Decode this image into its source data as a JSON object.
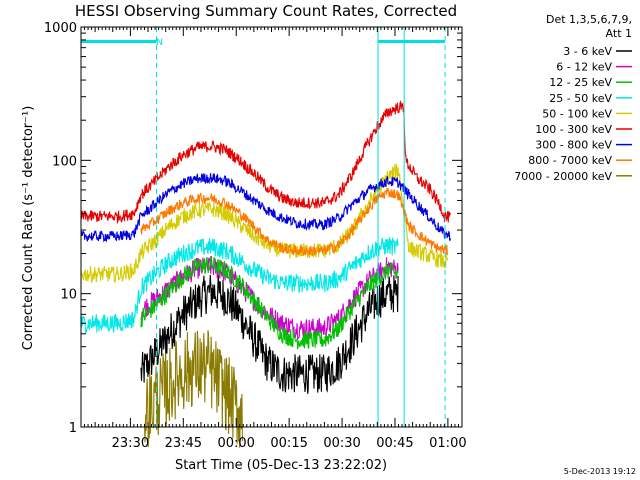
{
  "chart_data": {
    "type": "line",
    "title": "HESSI Observing Summary Count Rates, Corrected",
    "xlabel": "Start Time (05-Dec-13 23:22:02)",
    "ylabel": "Corrected Count Rate (s⁻¹ detector⁻¹)",
    "yscale": "log",
    "ylim": [
      1,
      1000
    ],
    "xlim_min": [
      -6,
      102
    ],
    "x_ticks": [
      {
        "min": 8,
        "label": "23:30"
      },
      {
        "min": 23,
        "label": "23:45"
      },
      {
        "min": 38,
        "label": "00:00"
      },
      {
        "min": 53,
        "label": "00:15"
      },
      {
        "min": 68,
        "label": "00:30"
      },
      {
        "min": 83,
        "label": "00:45"
      },
      {
        "min": 98,
        "label": "01:00"
      }
    ],
    "y_ticks": [
      {
        "v": 1,
        "label": "1"
      },
      {
        "v": 10,
        "label": "10"
      },
      {
        "v": 100,
        "label": "100"
      },
      {
        "v": 1000,
        "label": "1000"
      }
    ],
    "legend": {
      "header1": "Det 1,3,5,6,7,9,",
      "header2": "Att 1",
      "placement": "right"
    },
    "series": [
      {
        "name": "3 - 6 keV",
        "color": "#000000",
        "noise": 0.15,
        "points": [
          [
            11,
            2.5
          ],
          [
            15,
            3.5
          ],
          [
            19,
            5
          ],
          [
            23,
            7
          ],
          [
            27,
            9
          ],
          [
            31,
            10.5
          ],
          [
            35,
            9.5
          ],
          [
            39,
            7
          ],
          [
            43,
            4.5
          ],
          [
            47,
            3
          ],
          [
            51,
            2.5
          ],
          [
            55,
            2.5
          ],
          [
            59,
            2.5
          ],
          [
            63,
            2.5
          ],
          [
            67,
            3
          ],
          [
            71,
            4.5
          ],
          [
            75,
            7
          ],
          [
            78,
            9
          ],
          [
            81,
            10
          ],
          [
            84,
            10
          ]
        ]
      },
      {
        "name": "6 - 12 keV",
        "color": "#d000d0",
        "noise": 0.08,
        "points": [
          [
            11,
            7.5
          ],
          [
            15,
            9
          ],
          [
            19,
            11
          ],
          [
            23,
            13.5
          ],
          [
            27,
            15.5
          ],
          [
            31,
            16
          ],
          [
            35,
            14.5
          ],
          [
            39,
            11.5
          ],
          [
            43,
            9
          ],
          [
            47,
            7
          ],
          [
            51,
            6
          ],
          [
            55,
            5.5
          ],
          [
            59,
            5.5
          ],
          [
            63,
            5.5
          ],
          [
            67,
            6.5
          ],
          [
            71,
            9
          ],
          [
            75,
            12
          ],
          [
            78,
            14
          ],
          [
            81,
            16
          ],
          [
            84,
            15
          ]
        ]
      },
      {
        "name": "12 - 25 keV",
        "color": "#00c000",
        "noise": 0.07,
        "points": [
          [
            11,
            6.5
          ],
          [
            15,
            8
          ],
          [
            19,
            10.5
          ],
          [
            23,
            13.5
          ],
          [
            27,
            16
          ],
          [
            31,
            16.5
          ],
          [
            35,
            15
          ],
          [
            39,
            12
          ],
          [
            43,
            9
          ],
          [
            47,
            6.5
          ],
          [
            51,
            5
          ],
          [
            55,
            4.5
          ],
          [
            59,
            4.5
          ],
          [
            63,
            4.5
          ],
          [
            67,
            5.5
          ],
          [
            71,
            8
          ],
          [
            75,
            11
          ],
          [
            78,
            13
          ],
          [
            81,
            15
          ],
          [
            84,
            14
          ]
        ]
      },
      {
        "name": "25 - 50 keV",
        "color": "#00e8e8",
        "noise": 0.07,
        "points": [
          [
            -6,
            6
          ],
          [
            5,
            6
          ],
          [
            9,
            6.5
          ],
          [
            11,
            11
          ],
          [
            15,
            14
          ],
          [
            19,
            17.5
          ],
          [
            23,
            20
          ],
          [
            27,
            22
          ],
          [
            31,
            22.5
          ],
          [
            35,
            21
          ],
          [
            39,
            18
          ],
          [
            43,
            15
          ],
          [
            47,
            13
          ],
          [
            51,
            12
          ],
          [
            55,
            12
          ],
          [
            59,
            12
          ],
          [
            63,
            12
          ],
          [
            67,
            13
          ],
          [
            71,
            16
          ],
          [
            75,
            20
          ],
          [
            78,
            22
          ],
          [
            81,
            23
          ],
          [
            84,
            22
          ]
        ]
      },
      {
        "name": "50 - 100 keV",
        "color": "#d4cc00",
        "noise": 0.06,
        "points": [
          [
            -6,
            14
          ],
          [
            5,
            14
          ],
          [
            9,
            15
          ],
          [
            11,
            20
          ],
          [
            15,
            25
          ],
          [
            19,
            32
          ],
          [
            23,
            38
          ],
          [
            27,
            42
          ],
          [
            31,
            43
          ],
          [
            35,
            40
          ],
          [
            39,
            33
          ],
          [
            43,
            27
          ],
          [
            47,
            23
          ],
          [
            51,
            21
          ],
          [
            55,
            21
          ],
          [
            59,
            21
          ],
          [
            63,
            21
          ],
          [
            67,
            23
          ],
          [
            71,
            30
          ],
          [
            75,
            45
          ],
          [
            78,
            60
          ],
          [
            81,
            75
          ],
          [
            84,
            85
          ],
          [
            87,
            22
          ],
          [
            91,
            20
          ],
          [
            95,
            18
          ],
          [
            98,
            17
          ]
        ]
      },
      {
        "name": "100 - 300 keV",
        "color": "#e60000",
        "noise": 0.045,
        "points": [
          [
            -6,
            38
          ],
          [
            5,
            38
          ],
          [
            9,
            40
          ],
          [
            11,
            55
          ],
          [
            15,
            70
          ],
          [
            19,
            90
          ],
          [
            23,
            110
          ],
          [
            27,
            125
          ],
          [
            31,
            128
          ],
          [
            35,
            120
          ],
          [
            39,
            100
          ],
          [
            43,
            80
          ],
          [
            47,
            62
          ],
          [
            51,
            52
          ],
          [
            55,
            48
          ],
          [
            59,
            48
          ],
          [
            63,
            48
          ],
          [
            67,
            55
          ],
          [
            71,
            80
          ],
          [
            75,
            130
          ],
          [
            78,
            180
          ],
          [
            81,
            230
          ],
          [
            84,
            250
          ],
          [
            85.5,
            250
          ],
          [
            86,
            100
          ],
          [
            89,
            75
          ],
          [
            93,
            60
          ],
          [
            96,
            45
          ],
          [
            97,
            38
          ],
          [
            99,
            37
          ]
        ]
      },
      {
        "name": "300 - 800 keV",
        "color": "#0000e0",
        "noise": 0.04,
        "points": [
          [
            -6,
            27
          ],
          [
            5,
            27
          ],
          [
            9,
            28
          ],
          [
            11,
            38
          ],
          [
            15,
            47
          ],
          [
            19,
            58
          ],
          [
            23,
            67
          ],
          [
            27,
            73
          ],
          [
            31,
            74
          ],
          [
            35,
            70
          ],
          [
            39,
            60
          ],
          [
            43,
            50
          ],
          [
            47,
            42
          ],
          [
            51,
            37
          ],
          [
            55,
            34
          ],
          [
            59,
            33
          ],
          [
            63,
            33
          ],
          [
            67,
            37
          ],
          [
            71,
            47
          ],
          [
            75,
            58
          ],
          [
            78,
            65
          ],
          [
            81,
            70
          ],
          [
            84,
            68
          ],
          [
            87,
            55
          ],
          [
            91,
            42
          ],
          [
            95,
            32
          ],
          [
            97,
            28
          ],
          [
            99,
            27
          ]
        ]
      },
      {
        "name": "800 - 7000 keV",
        "color": "#ff7800",
        "noise": 0.04,
        "points": [
          [
            11,
            30
          ],
          [
            15,
            35
          ],
          [
            19,
            42
          ],
          [
            23,
            48
          ],
          [
            27,
            52
          ],
          [
            31,
            52
          ],
          [
            35,
            48
          ],
          [
            39,
            40
          ],
          [
            43,
            32
          ],
          [
            47,
            25
          ],
          [
            51,
            22
          ],
          [
            55,
            21
          ],
          [
            59,
            21
          ],
          [
            63,
            21
          ],
          [
            67,
            23
          ],
          [
            71,
            30
          ],
          [
            75,
            42
          ],
          [
            78,
            52
          ],
          [
            81,
            58
          ],
          [
            84,
            55
          ],
          [
            87,
            32
          ],
          [
            91,
            26
          ],
          [
            95,
            22
          ],
          [
            98,
            21
          ]
        ]
      },
      {
        "name": "7000 - 20000 keV",
        "color": "#8a7a00",
        "noise": 0.3,
        "points": [
          [
            12,
            1.3
          ],
          [
            15,
            1.6
          ],
          [
            19,
            2
          ],
          [
            22,
            2.5
          ],
          [
            26,
            2.8
          ],
          [
            30,
            2.8
          ],
          [
            34,
            2
          ],
          [
            38,
            1.4
          ],
          [
            40,
            1.2
          ]
        ]
      }
    ],
    "vlines": [
      {
        "min": 15.4,
        "color": "#00e0e0",
        "style": "dashed"
      },
      {
        "min": 78.2,
        "color": "#00e0e0",
        "style": "solid"
      },
      {
        "min": 85.6,
        "color": "#00e0e0",
        "style": "solid"
      },
      {
        "min": 97.2,
        "color": "#00e0e0",
        "style": "dashed"
      }
    ],
    "top_bars": [
      {
        "from": -6,
        "to": 15.4,
        "color": "#00e0e0"
      },
      {
        "from": 78.2,
        "to": 97.2,
        "color": "#00e0e0"
      }
    ],
    "annotation_N": {
      "text": "N",
      "min": 16.3
    },
    "footer": "5-Dec-2013 19:12"
  }
}
